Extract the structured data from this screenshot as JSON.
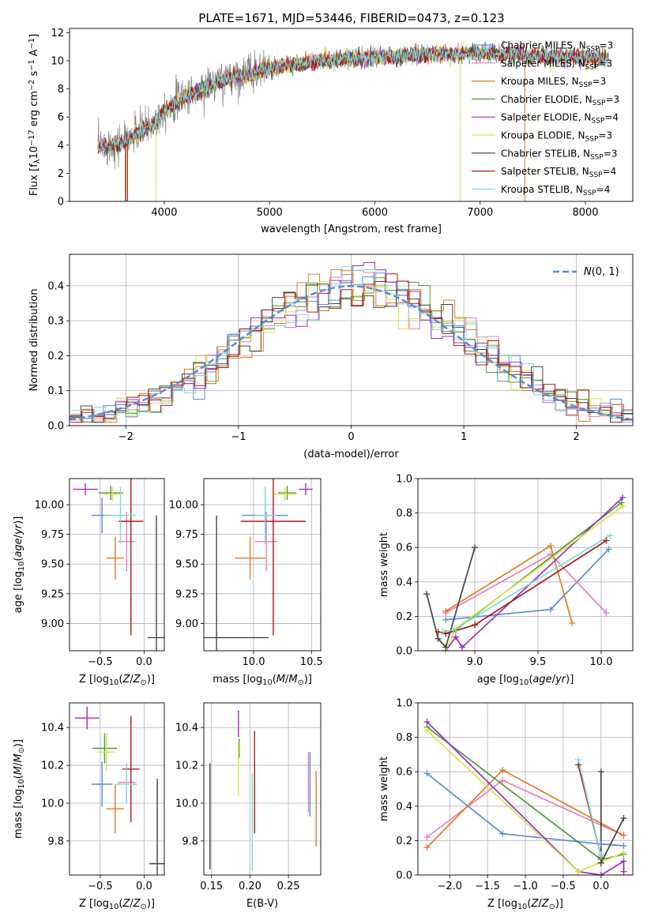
{
  "figure_title": "PLATE=1671, MJD=53446, FIBERID=0473, z=0.123",
  "colors": {
    "chabrier_miles": "#5b8bd9",
    "salpeter_miles": "#e27fc0",
    "kroupa_miles": "#e07b22",
    "chabrier_elodie": "#4e9a3c",
    "salpeter_elodie": "#9a2fc4",
    "kroupa_elodie": "#d8e24a",
    "chabrier_stelib": "#444444",
    "salpeter_stelib": "#b01818",
    "kroupa_stelib": "#7fd9dc",
    "data": "#808080",
    "gaussian": "#5b8bd9"
  },
  "chart_data": [
    {
      "id": "spectrum",
      "type": "line",
      "title": "PLATE=1671, MJD=53446, FIBERID=0473, z=0.123",
      "xlabel": "wavelength [Angstrom, rest frame]",
      "ylabel": "Flux [f_λ 10^-17 erg cm^-2 s^-1 A^-1]",
      "xlim": [
        3100,
        8450
      ],
      "ylim": [
        0,
        12.3
      ],
      "xticks": [
        4000,
        5000,
        6000,
        7000,
        8000
      ],
      "yticks": [
        0,
        2,
        4,
        6,
        8,
        10,
        12
      ],
      "grid": false,
      "legend_position": "top-right",
      "legend": [
        {
          "name": "Chabrier MILES, N_SSP=3",
          "color_key": "chabrier_miles"
        },
        {
          "name": "Salpeter MILES, N_SSP=3",
          "color_key": "salpeter_miles"
        },
        {
          "name": "Kroupa MILES, N_SSP=3",
          "color_key": "kroupa_miles"
        },
        {
          "name": "Chabrier ELODIE, N_SSP=3",
          "color_key": "chabrier_elodie"
        },
        {
          "name": "Salpeter ELODIE, N_SSP=4",
          "color_key": "salpeter_elodie"
        },
        {
          "name": "Kroupa ELODIE, N_SSP=3",
          "color_key": "kroupa_elodie"
        },
        {
          "name": "Chabrier STELIB, N_SSP=3",
          "color_key": "chabrier_stelib"
        },
        {
          "name": "Salpeter STELIB, N_SSP=4",
          "color_key": "salpeter_stelib"
        },
        {
          "name": "Kroupa STELIB, N_SSP=4",
          "color_key": "kroupa_stelib"
        }
      ],
      "continuum": {
        "x": [
          3400,
          3600,
          3800,
          3900,
          4000,
          4200,
          4400,
          4600,
          4800,
          5000,
          5200,
          5500,
          5800,
          6000,
          6300,
          6600,
          6800,
          7000,
          7200,
          7500,
          7800,
          8200
        ],
        "y": [
          4.0,
          4.2,
          5.2,
          5.6,
          6.6,
          7.6,
          8.2,
          8.8,
          9.2,
          9.6,
          9.8,
          10.1,
          10.3,
          10.4,
          10.5,
          10.6,
          10.6,
          10.7,
          10.6,
          10.5,
          10.4,
          10.3
        ]
      }
    },
    {
      "id": "residuals",
      "type": "histogram",
      "xlabel": "(data-model)/error",
      "ylabel": "Normed distribution",
      "xlim": [
        -2.5,
        2.5
      ],
      "ylim": [
        0,
        0.49
      ],
      "xticks": [
        -2,
        -1,
        0,
        1,
        2
      ],
      "yticks": [
        0.0,
        0.1,
        0.2,
        0.3,
        0.4
      ],
      "grid": true,
      "legend_position": "top-right",
      "gaussian_label": "N(0, 1)",
      "bin_width": 0.1
    },
    {
      "id": "age_vs_z",
      "type": "errorbar",
      "xlabel": "Z [log10(Z/Z⊙)]",
      "ylabel": "age [log10(age/yr)]",
      "xlim": [
        -0.85,
        0.23
      ],
      "ylim": [
        8.77,
        10.22
      ],
      "xticks": [
        -0.5,
        0.0
      ],
      "yticks": [
        9.0,
        9.25,
        9.5,
        9.75,
        10.0
      ],
      "grid": true,
      "points": [
        {
          "key": "chabrier_miles",
          "x": -0.48,
          "xerr": 0.12,
          "y": 9.91,
          "yerr": 0.15
        },
        {
          "key": "salpeter_miles",
          "x": -0.2,
          "xerr": 0.1,
          "y": 9.69,
          "yerr": 0.25
        },
        {
          "key": "kroupa_miles",
          "x": -0.33,
          "xerr": 0.1,
          "y": 9.55,
          "yerr": 0.18
        },
        {
          "key": "chabrier_elodie",
          "x": -0.38,
          "xerr": 0.14,
          "y": 10.1,
          "yerr": 0.06
        },
        {
          "key": "salpeter_elodie",
          "x": -0.67,
          "xerr": 0.14,
          "y": 10.13,
          "yerr": 0.05
        },
        {
          "key": "kroupa_elodie",
          "x": -0.36,
          "xerr": 0.1,
          "y": 10.09,
          "yerr": 0.06
        },
        {
          "key": "chabrier_stelib",
          "x": 0.14,
          "xerr": 0.1,
          "y": 8.88,
          "yerr": 1.03
        },
        {
          "key": "salpeter_stelib",
          "x": -0.15,
          "xerr": 0.14,
          "y": 9.86,
          "yerr": 0.96
        },
        {
          "key": "kroupa_stelib",
          "x": -0.27,
          "xerr": 0.18,
          "y": 9.91,
          "yerr": 0.24
        }
      ]
    },
    {
      "id": "age_vs_mass",
      "type": "errorbar",
      "xlabel": "mass [log10(M/M⊙)]",
      "ylabel": "",
      "xlim": [
        9.57,
        10.58
      ],
      "ylim": [
        8.77,
        10.22
      ],
      "xticks": [
        10.0,
        10.5
      ],
      "yticks": [
        9.0,
        9.25,
        9.5,
        9.75,
        10.0
      ],
      "grid": true,
      "points": [
        {
          "key": "chabrier_miles",
          "x": 10.1,
          "xerr": 0.2,
          "y": 9.91,
          "yerr": 0.15
        },
        {
          "key": "salpeter_miles",
          "x": 10.11,
          "xerr": 0.1,
          "y": 9.69,
          "yerr": 0.25
        },
        {
          "key": "kroupa_miles",
          "x": 9.97,
          "xerr": 0.13,
          "y": 9.55,
          "yerr": 0.18
        },
        {
          "key": "chabrier_elodie",
          "x": 10.29,
          "xerr": 0.08,
          "y": 10.1,
          "yerr": 0.06
        },
        {
          "key": "salpeter_elodie",
          "x": 10.45,
          "xerr": 0.06,
          "y": 10.13,
          "yerr": 0.05
        },
        {
          "key": "kroupa_elodie",
          "x": 10.27,
          "xerr": 0.1,
          "y": 10.09,
          "yerr": 0.06
        },
        {
          "key": "chabrier_stelib",
          "x": 9.68,
          "xerr": 0.45,
          "y": 8.88,
          "yerr": 1.03
        },
        {
          "key": "salpeter_stelib",
          "x": 10.17,
          "xerr": 0.28,
          "y": 9.86,
          "yerr": 0.96
        },
        {
          "key": "kroupa_stelib",
          "x": 10.1,
          "xerr": 0.09,
          "y": 9.91,
          "yerr": 0.24
        }
      ]
    },
    {
      "id": "weight_vs_age",
      "type": "line",
      "xlabel": "age [log10(age/yr)]",
      "ylabel": "mass weight",
      "xlim": [
        8.55,
        10.25
      ],
      "ylim": [
        0,
        1
      ],
      "xticks": [
        9.0,
        9.5,
        10.0
      ],
      "yticks": [
        0.0,
        0.2,
        0.4,
        0.6,
        0.8,
        1.0
      ],
      "grid": true,
      "series": [
        {
          "key": "chabrier_miles",
          "x": [
            8.77,
            9.6,
            10.06
          ],
          "y": [
            0.18,
            0.24,
            0.59
          ]
        },
        {
          "key": "salpeter_miles",
          "x": [
            8.77,
            9.6,
            10.04
          ],
          "y": [
            0.22,
            0.56,
            0.22
          ]
        },
        {
          "key": "kroupa_miles",
          "x": [
            8.77,
            9.6,
            9.77
          ],
          "y": [
            0.23,
            0.61,
            0.16
          ]
        },
        {
          "key": "chabrier_elodie",
          "x": [
            8.77,
            8.85,
            10.16
          ],
          "y": [
            0.1,
            0.12,
            0.86
          ]
        },
        {
          "key": "salpeter_elodie",
          "x": [
            8.77,
            8.85,
            8.9,
            10.17
          ],
          "y": [
            0.0,
            0.08,
            0.02,
            0.89
          ]
        },
        {
          "key": "kroupa_elodie",
          "x": [
            8.77,
            8.85,
            10.17
          ],
          "y": [
            0.0,
            0.13,
            0.84
          ]
        },
        {
          "key": "chabrier_stelib",
          "x": [
            8.62,
            8.71,
            8.77,
            9.0
          ],
          "y": [
            0.33,
            0.07,
            0.02,
            0.6
          ]
        },
        {
          "key": "salpeter_stelib",
          "x": [
            8.71,
            8.77,
            9.0,
            10.04
          ],
          "y": [
            0.11,
            0.1,
            0.15,
            0.64
          ]
        },
        {
          "key": "kroupa_stelib",
          "x": [
            8.75,
            8.83,
            10.07
          ],
          "y": [
            0.11,
            0.12,
            0.67
          ]
        }
      ]
    },
    {
      "id": "mass_vs_z",
      "type": "errorbar",
      "xlabel": "Z [log10(Z/Z⊙)]",
      "ylabel": "mass [log10(M/M⊙)]",
      "xlim": [
        -0.85,
        0.23
      ],
      "ylim": [
        9.62,
        10.53
      ],
      "xticks": [
        -0.5,
        0.0
      ],
      "yticks": [
        9.8,
        10.0,
        10.2,
        10.4
      ],
      "grid": true,
      "points": [
        {
          "key": "chabrier_miles",
          "x": -0.48,
          "xerr": 0.12,
          "y": 10.1,
          "yerr": 0.12
        },
        {
          "key": "salpeter_miles",
          "x": -0.2,
          "xerr": 0.1,
          "y": 10.11,
          "yerr": 0.1
        },
        {
          "key": "kroupa_miles",
          "x": -0.33,
          "xerr": 0.1,
          "y": 9.97,
          "yerr": 0.13
        },
        {
          "key": "chabrier_elodie",
          "x": -0.45,
          "xerr": 0.14,
          "y": 10.29,
          "yerr": 0.08
        },
        {
          "key": "salpeter_elodie",
          "x": -0.65,
          "xerr": 0.14,
          "y": 10.45,
          "yerr": 0.06
        },
        {
          "key": "kroupa_elodie",
          "x": -0.43,
          "xerr": 0.1,
          "y": 10.27,
          "yerr": 0.1
        },
        {
          "key": "chabrier_stelib",
          "x": 0.15,
          "xerr": 0.09,
          "y": 9.68,
          "yerr": 0.45
        },
        {
          "key": "salpeter_stelib",
          "x": -0.15,
          "xerr": 0.1,
          "y": 10.18,
          "yerr": 0.28
        },
        {
          "key": "kroupa_stelib",
          "x": -0.2,
          "xerr": 0.12,
          "y": 10.1,
          "yerr": 0.1
        }
      ]
    },
    {
      "id": "mass_vs_ebv",
      "type": "errorbar",
      "xlabel": "E(B-V)",
      "ylabel": "",
      "xlim": [
        0.14,
        0.292
      ],
      "ylim": [
        9.62,
        10.53
      ],
      "xticks": [
        0.15,
        0.2,
        0.25
      ],
      "yticks": [
        9.8,
        10.0,
        10.2,
        10.4
      ],
      "grid": true,
      "points": [
        {
          "key": "chabrier_miles",
          "x": 0.278,
          "xerr": 0,
          "y": 10.1,
          "yerr": 0.17
        },
        {
          "key": "salpeter_miles",
          "x": 0.276,
          "xerr": 0,
          "y": 10.11,
          "yerr": 0.16
        },
        {
          "key": "kroupa_miles",
          "x": 0.286,
          "xerr": 0,
          "y": 9.97,
          "yerr": 0.2
        },
        {
          "key": "chabrier_elodie",
          "x": 0.186,
          "xerr": 0,
          "y": 10.29,
          "yerr": 0.05
        },
        {
          "key": "salpeter_elodie",
          "x": 0.185,
          "xerr": 0,
          "y": 10.42,
          "yerr": 0.07
        },
        {
          "key": "kroupa_elodie",
          "x": 0.185,
          "xerr": 0,
          "y": 10.18,
          "yerr": 0.14
        },
        {
          "key": "chabrier_stelib",
          "x": 0.148,
          "xerr": 0,
          "y": 9.93,
          "yerr": 0.28
        },
        {
          "key": "salpeter_stelib",
          "x": 0.206,
          "xerr": 0,
          "y": 10.11,
          "yerr": 0.27
        },
        {
          "key": "kroupa_stelib",
          "x": 0.203,
          "xerr": 0,
          "y": 9.9,
          "yerr": 0.26
        }
      ]
    },
    {
      "id": "weight_vs_z",
      "type": "line",
      "xlabel": "Z [log10(Z/Z⊙)]",
      "ylabel": "mass weight",
      "xlim": [
        -2.42,
        0.42
      ],
      "ylim": [
        0,
        1
      ],
      "xticks": [
        -2.0,
        -1.5,
        -1.0,
        -0.5,
        0.0
      ],
      "yticks": [
        0.0,
        0.2,
        0.4,
        0.6,
        0.8,
        1.0
      ],
      "grid": true,
      "series": [
        {
          "key": "chabrier_miles",
          "x": [
            -2.3,
            -1.3,
            0.0,
            0.3
          ],
          "y": [
            0.59,
            0.24,
            0.18,
            0.17
          ]
        },
        {
          "key": "salpeter_miles",
          "x": [
            -2.3,
            -1.3,
            0.3
          ],
          "y": [
            0.22,
            0.55,
            0.23
          ]
        },
        {
          "key": "kroupa_miles",
          "x": [
            -2.3,
            -1.3,
            0.3
          ],
          "y": [
            0.16,
            0.61,
            0.23
          ]
        },
        {
          "key": "chabrier_elodie",
          "x": [
            -2.3,
            0.0,
            0.3
          ],
          "y": [
            0.86,
            0.09,
            0.12
          ]
        },
        {
          "key": "salpeter_elodie",
          "x": [
            -2.3,
            -0.3,
            0.0,
            0.3,
            0.3
          ],
          "y": [
            0.89,
            0.02,
            0.0,
            0.08,
            0.02
          ]
        },
        {
          "key": "kroupa_elodie",
          "x": [
            -2.3,
            -0.3,
            0.3
          ],
          "y": [
            0.84,
            0.02,
            0.13
          ]
        },
        {
          "key": "chabrier_stelib",
          "x": [
            0.3,
            0.0,
            0.0,
            0.0
          ],
          "y": [
            0.33,
            0.07,
            0.6,
            0.07
          ]
        },
        {
          "key": "salpeter_stelib",
          "x": [
            -0.3,
            0.0,
            0.0
          ],
          "y": [
            0.64,
            0.11,
            0.1
          ]
        },
        {
          "key": "kroupa_stelib",
          "x": [
            -0.3,
            0.0,
            0.0
          ],
          "y": [
            0.67,
            0.11,
            0.12
          ]
        }
      ]
    }
  ]
}
